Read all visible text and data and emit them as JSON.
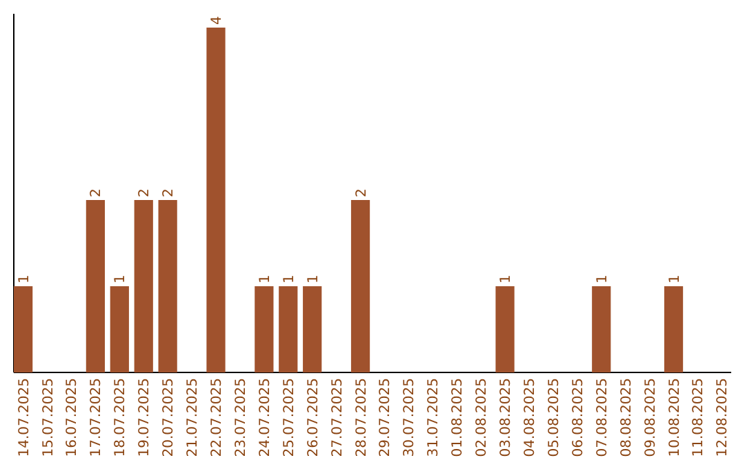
{
  "chart_data": {
    "type": "bar",
    "categories": [
      "14.07.2025",
      "15.07.2025",
      "16.07.2025",
      "17.07.2025",
      "18.07.2025",
      "19.07.2025",
      "20.07.2025",
      "21.07.2025",
      "22.07.2025",
      "23.07.2025",
      "24.07.2025",
      "25.07.2025",
      "26.07.2025",
      "27.07.2025",
      "28.07.2025",
      "29.07.2025",
      "30.07.2025",
      "31.07.2025",
      "01.08.2025",
      "02.08.2025",
      "03.08.2025",
      "04.08.2025",
      "05.08.2025",
      "06.08.2025",
      "07.08.2025",
      "08.08.2025",
      "09.08.2025",
      "10.08.2025",
      "11.08.2025",
      "12.08.2025"
    ],
    "values": [
      1,
      0,
      0,
      2,
      1,
      2,
      2,
      0,
      4,
      0,
      1,
      1,
      1,
      0,
      2,
      0,
      0,
      0,
      0,
      0,
      1,
      0,
      0,
      0,
      1,
      0,
      0,
      1,
      0,
      0
    ],
    "value_labels": [
      "1",
      null,
      null,
      "2",
      "1",
      "2",
      "2",
      null,
      "4",
      null,
      "1",
      "1",
      "1",
      null,
      "2",
      null,
      null,
      null,
      null,
      null,
      "1",
      null,
      null,
      null,
      "1",
      null,
      null,
      "1",
      null,
      null
    ],
    "color": "#a0522d"
  }
}
